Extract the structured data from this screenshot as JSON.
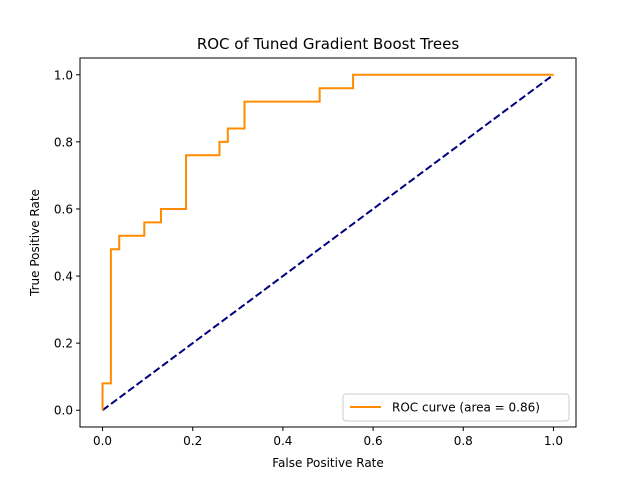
{
  "chart_data": {
    "type": "line",
    "title": "ROC of Tuned Gradient Boost Trees",
    "xlabel": "False Positive Rate",
    "ylabel": "True Positive Rate",
    "xlim": [
      -0.05,
      1.05
    ],
    "ylim": [
      -0.05,
      1.05
    ],
    "xticks": [
      0.0,
      0.2,
      0.4,
      0.6,
      0.8,
      1.0
    ],
    "yticks": [
      0.0,
      0.2,
      0.4,
      0.6,
      0.8,
      1.0
    ],
    "xtick_labels": [
      "0.0",
      "0.2",
      "0.4",
      "0.6",
      "0.8",
      "1.0"
    ],
    "ytick_labels": [
      "0.0",
      "0.2",
      "0.4",
      "0.6",
      "0.8",
      "1.0"
    ],
    "grid": false,
    "legend": {
      "placement": "lower-right",
      "entries": [
        "ROC curve (area = 0.86)"
      ]
    },
    "series": [
      {
        "name": "ROC curve (area = 0.86)",
        "color": "#ff8c00",
        "style": "solid",
        "x": [
          0.0,
          0.0,
          0.0185,
          0.0185,
          0.037,
          0.037,
          0.0926,
          0.0926,
          0.1296,
          0.1296,
          0.1852,
          0.1852,
          0.2593,
          0.2593,
          0.2778,
          0.2778,
          0.3148,
          0.3148,
          0.4815,
          0.4815,
          0.5556,
          0.5556,
          1.0
        ],
        "y": [
          0.0,
          0.08,
          0.08,
          0.48,
          0.48,
          0.52,
          0.52,
          0.56,
          0.56,
          0.6,
          0.6,
          0.76,
          0.76,
          0.8,
          0.8,
          0.84,
          0.84,
          0.92,
          0.92,
          0.96,
          0.96,
          1.0,
          1.0
        ]
      },
      {
        "color": "#000080",
        "style": "dashed",
        "x": [
          0.0,
          1.0
        ],
        "y": [
          0.0,
          1.0
        ]
      }
    ]
  }
}
